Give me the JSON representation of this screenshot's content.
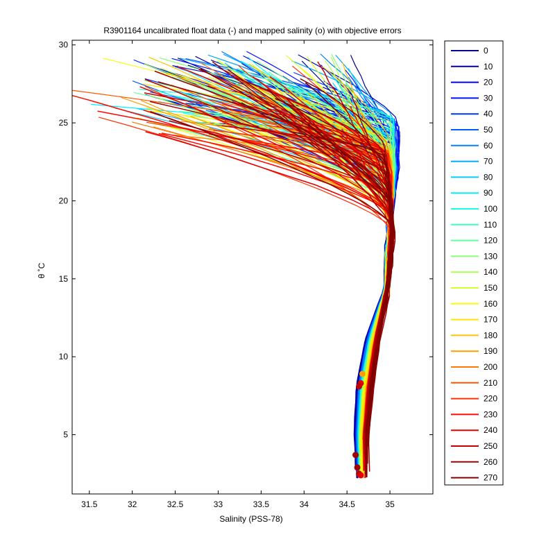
{
  "chart_data": {
    "type": "line",
    "title": "R3901164 uncalibrated float data (-) and mapped salinity (o) with objective errors",
    "xlabel": "Salinity (PSS-78)",
    "ylabel": "θ ˚C",
    "xlim": [
      31.3,
      35.5
    ],
    "ylim": [
      1.2,
      30.3
    ],
    "xticks": [
      "31.5",
      "32",
      "32.5",
      "33",
      "33.5",
      "34",
      "34.5",
      "35"
    ],
    "yticks": [
      "5",
      "10",
      "15",
      "20",
      "25",
      "30"
    ],
    "grid": false,
    "legend_position": "right",
    "legend": [
      "0",
      "10",
      "20",
      "30",
      "40",
      "50",
      "60",
      "70",
      "80",
      "90",
      "100",
      "110",
      "120",
      "130",
      "140",
      "150",
      "160",
      "170",
      "180",
      "190",
      "200",
      "210",
      "220",
      "230",
      "240",
      "250",
      "260",
      "270"
    ],
    "legend_colors": [
      "#00008F",
      "#0000B3",
      "#0000D9",
      "#0010FF",
      "#0035FF",
      "#005BFF",
      "#0080FF",
      "#00A6FF",
      "#00CCFF",
      "#00F0FF",
      "#18FFE6",
      "#3DFFC2",
      "#61FF9E",
      "#87FF78",
      "#ABFF54",
      "#D1FF2E",
      "#F5FF0A",
      "#FFE600",
      "#FFC200",
      "#FF9E00",
      "#FF7800",
      "#FF5400",
      "#FF2E00",
      "#FF0A00",
      "#E60000",
      "#C20000",
      "#A10000",
      "#800000"
    ],
    "profiles_per_legend_step": 10,
    "deep_endpoints": [
      [
        34.6,
        2.3
      ],
      [
        34.62,
        2.9
      ],
      [
        34.65,
        2.6
      ],
      [
        34.62,
        3.8
      ],
      [
        34.6,
        3.6
      ]
    ],
    "mapped_points": [
      [
        34.68,
        8.9
      ],
      [
        34.66,
        8.3
      ],
      [
        34.64,
        8.1
      ],
      [
        34.6,
        3.7
      ],
      [
        34.62,
        2.9
      ],
      [
        34.64,
        2.5
      ],
      [
        34.66,
        2.4
      ]
    ]
  }
}
